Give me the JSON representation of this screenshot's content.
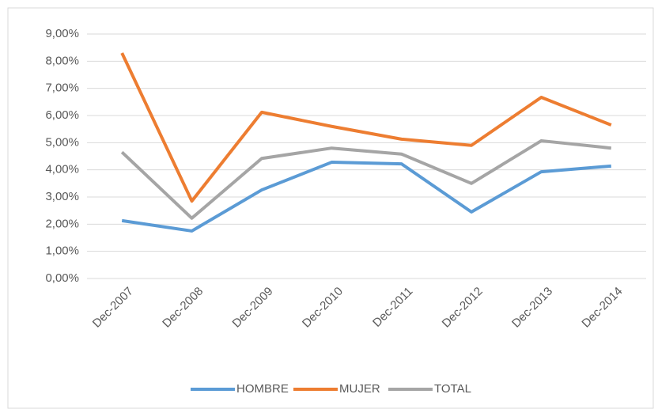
{
  "chart_data": {
    "type": "line",
    "categories": [
      "Dec-2007",
      "Dec-2008",
      "Dec-2009",
      "Dec-2010",
      "Dec-2011",
      "Dec-2012",
      "Dec-2013",
      "Dec-2014"
    ],
    "series": [
      {
        "name": "HOMBRE",
        "color": "#5b9bd5",
        "values": [
          2.13,
          1.75,
          3.26,
          4.28,
          4.22,
          2.45,
          3.93,
          4.14
        ]
      },
      {
        "name": "MUJER",
        "color": "#ed7d31",
        "values": [
          8.3,
          2.85,
          6.12,
          5.6,
          5.13,
          4.9,
          6.67,
          5.65
        ]
      },
      {
        "name": "TOTAL",
        "color": "#a5a5a5",
        "values": [
          4.65,
          2.22,
          4.42,
          4.8,
          4.58,
          3.5,
          5.07,
          4.8
        ]
      }
    ],
    "ylim": [
      0,
      9
    ],
    "yticks": [
      {
        "value": 0,
        "label": "0,00%"
      },
      {
        "value": 1,
        "label": "1,00%"
      },
      {
        "value": 2,
        "label": "2,00%"
      },
      {
        "value": 3,
        "label": "3,00%"
      },
      {
        "value": 4,
        "label": "4,00%"
      },
      {
        "value": 5,
        "label": "5,00%"
      },
      {
        "value": 6,
        "label": "6,00%"
      },
      {
        "value": 7,
        "label": "7,00%"
      },
      {
        "value": 8,
        "label": "8,00%"
      },
      {
        "value": 9,
        "label": "9,00%"
      }
    ],
    "grid": true,
    "legend": "bottom"
  }
}
